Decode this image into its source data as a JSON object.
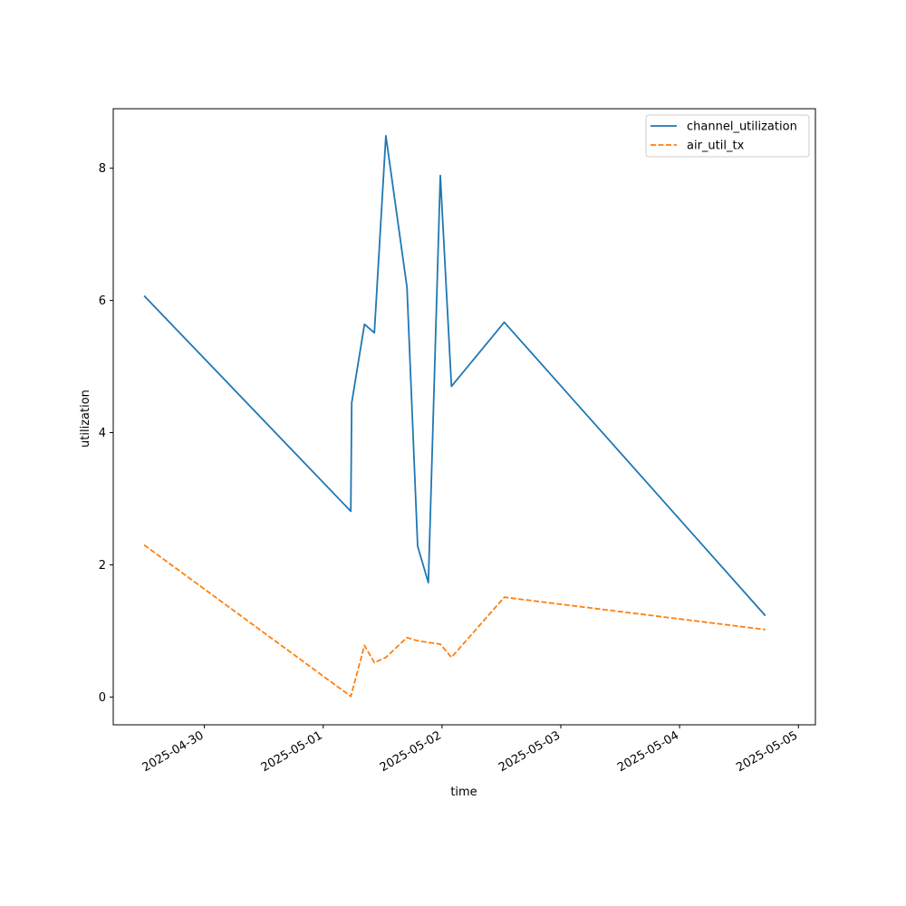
{
  "chart_data": {
    "type": "line",
    "title": "",
    "xlabel": "time",
    "ylabel": "utilization",
    "x_tick_labels": [
      "2025-04-30",
      "2025-05-01",
      "2025-05-02",
      "2025-05-03",
      "2025-05-04",
      "2025-05-05"
    ],
    "y_ticks": [
      0,
      2,
      4,
      6,
      8
    ],
    "xlim": [
      "2025-04-29T05:35",
      "2025-05-05T03:26"
    ],
    "ylim": [
      -0.42,
      8.9
    ],
    "grid": false,
    "legend_position": "top-right",
    "series": [
      {
        "name": "channel_utilization",
        "color": "#1f77b4",
        "style": "solid",
        "points": [
          {
            "x": "2025-04-29T11:50",
            "y": 6.07
          },
          {
            "x": "2025-05-01T05:35",
            "y": 2.81
          },
          {
            "x": "2025-05-01T05:45",
            "y": 4.45
          },
          {
            "x": "2025-05-01T08:20",
            "y": 5.64
          },
          {
            "x": "2025-05-01T10:20",
            "y": 5.51
          },
          {
            "x": "2025-05-01T12:40",
            "y": 8.49
          },
          {
            "x": "2025-05-01T16:55",
            "y": 6.2
          },
          {
            "x": "2025-05-01T19:05",
            "y": 2.28
          },
          {
            "x": "2025-05-01T21:15",
            "y": 1.73
          },
          {
            "x": "2025-05-01T23:40",
            "y": 7.89
          },
          {
            "x": "2025-05-02T01:55",
            "y": 4.7
          },
          {
            "x": "2025-05-02T12:35",
            "y": 5.67
          },
          {
            "x": "2025-05-04T17:20",
            "y": 1.23
          }
        ]
      },
      {
        "name": "air_util_tx",
        "color": "#ff7f0e",
        "style": "dashed",
        "points": [
          {
            "x": "2025-04-29T11:50",
            "y": 2.3
          },
          {
            "x": "2025-05-01T05:35",
            "y": 0.01
          },
          {
            "x": "2025-05-01T08:20",
            "y": 0.78
          },
          {
            "x": "2025-05-01T10:20",
            "y": 0.52
          },
          {
            "x": "2025-05-01T12:40",
            "y": 0.6
          },
          {
            "x": "2025-05-01T16:55",
            "y": 0.9
          },
          {
            "x": "2025-05-01T19:05",
            "y": 0.85
          },
          {
            "x": "2025-05-01T23:40",
            "y": 0.8
          },
          {
            "x": "2025-05-02T01:55",
            "y": 0.6
          },
          {
            "x": "2025-05-02T12:35",
            "y": 1.51
          },
          {
            "x": "2025-05-04T17:20",
            "y": 1.02
          }
        ]
      }
    ]
  }
}
